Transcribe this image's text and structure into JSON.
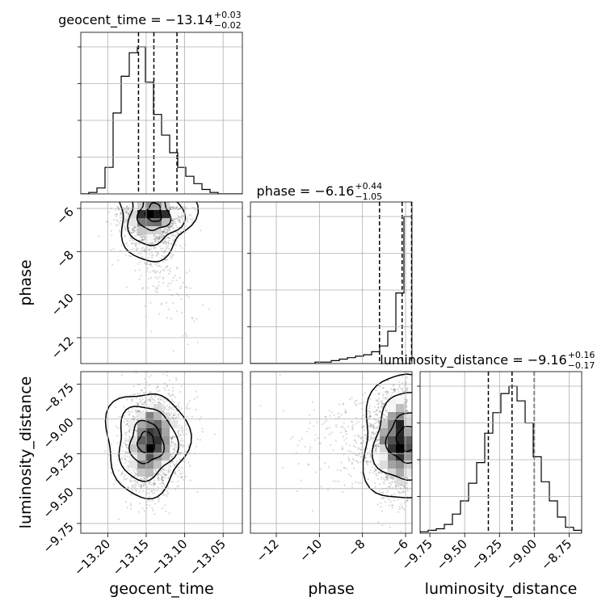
{
  "chart_data": {
    "type": "corner",
    "parameters": [
      "geocent_time",
      "phase",
      "luminosity_distance"
    ],
    "titles": [
      {
        "param": "geocent_time",
        "prefix": "geocent_time = ",
        "median": "−13.14",
        "plus": "+0.03",
        "minus": "−0.02"
      },
      {
        "param": "phase",
        "prefix": "phase = ",
        "median": "−6.16",
        "plus": "+0.44",
        "minus": "−1.05"
      },
      {
        "param": "luminosity_distance",
        "prefix": "luminosity_distance = ",
        "median": "−9.16",
        "plus": "+0.16",
        "minus": "−0.17"
      }
    ],
    "ranges": {
      "geocent_time": [
        -13.235,
        -13.025
      ],
      "phase": [
        -13.2,
        -5.7
      ],
      "luminosity_distance": [
        -9.82,
        -8.66
      ]
    },
    "ticks": {
      "geocent_time": [
        {
          "v": -13.2,
          "label": "−13.20"
        },
        {
          "v": -13.15,
          "label": "−13.15"
        },
        {
          "v": -13.1,
          "label": "−13.10"
        },
        {
          "v": -13.05,
          "label": "−13.05"
        }
      ],
      "phase": [
        {
          "v": -12,
          "label": "−12"
        },
        {
          "v": -10,
          "label": "−10"
        },
        {
          "v": -8,
          "label": "−8"
        },
        {
          "v": -6,
          "label": "−6"
        }
      ],
      "luminosity_distance": [
        {
          "v": -9.75,
          "label": "−9.75"
        },
        {
          "v": -9.5,
          "label": "−9.50"
        },
        {
          "v": -9.25,
          "label": "−9.25"
        },
        {
          "v": -9.0,
          "label": "−9.00"
        },
        {
          "v": -8.75,
          "label": "−8.75"
        }
      ]
    },
    "axis_labels": {
      "geocent_time": "geocent_time",
      "phase": "phase",
      "luminosity_distance": "luminosity_distance"
    },
    "quantiles": {
      "geocent_time": [
        -13.16,
        -13.14,
        -13.11
      ],
      "phase": [
        -7.21,
        -6.16,
        -5.72
      ],
      "luminosity_distance": [
        -9.33,
        -9.16,
        -9.0
      ]
    },
    "histograms": {
      "geocent_time": {
        "edges": [
          -13.235,
          -13.2245,
          -13.214,
          -13.2035,
          -13.193,
          -13.1825,
          -13.172,
          -13.1615,
          -13.151,
          -13.1405,
          -13.13,
          -13.1195,
          -13.109,
          -13.0985,
          -13.088,
          -13.0775,
          -13.067,
          -13.0565,
          -13.046,
          -13.0355,
          -13.025
        ],
        "counts": [
          0,
          1,
          4,
          18,
          55,
          80,
          96,
          100,
          76,
          54,
          40,
          28,
          18,
          12,
          7,
          3,
          1,
          0,
          0,
          0
        ]
      },
      "phase": {
        "edges": [
          -13.2,
          -12.825,
          -12.45,
          -12.075,
          -11.7,
          -11.325,
          -10.95,
          -10.575,
          -10.2,
          -9.825,
          -9.45,
          -9.075,
          -8.7,
          -8.325,
          -7.95,
          -7.575,
          -7.2,
          -6.825,
          -6.45,
          -6.075,
          -5.7
        ],
        "counts": [
          0,
          0,
          0,
          0,
          0,
          0,
          0,
          0,
          1,
          1,
          2,
          3,
          4,
          5,
          6,
          8,
          12,
          22,
          48,
          100
        ]
      },
      "luminosity_distance": {
        "edges": [
          -9.82,
          -9.762,
          -9.704,
          -9.646,
          -9.588,
          -9.53,
          -9.472,
          -9.414,
          -9.356,
          -9.298,
          -9.24,
          -9.182,
          -9.124,
          -9.066,
          -9.008,
          -8.95,
          -8.892,
          -8.834,
          -8.776,
          -8.718,
          -8.66
        ],
        "counts": [
          1,
          2,
          3,
          6,
          13,
          22,
          34,
          48,
          68,
          82,
          95,
          100,
          90,
          75,
          52,
          35,
          22,
          11,
          4,
          2
        ]
      }
    },
    "contour_levels": [
      0.118,
      0.393,
      0.675,
      0.865
    ],
    "grid": true
  }
}
